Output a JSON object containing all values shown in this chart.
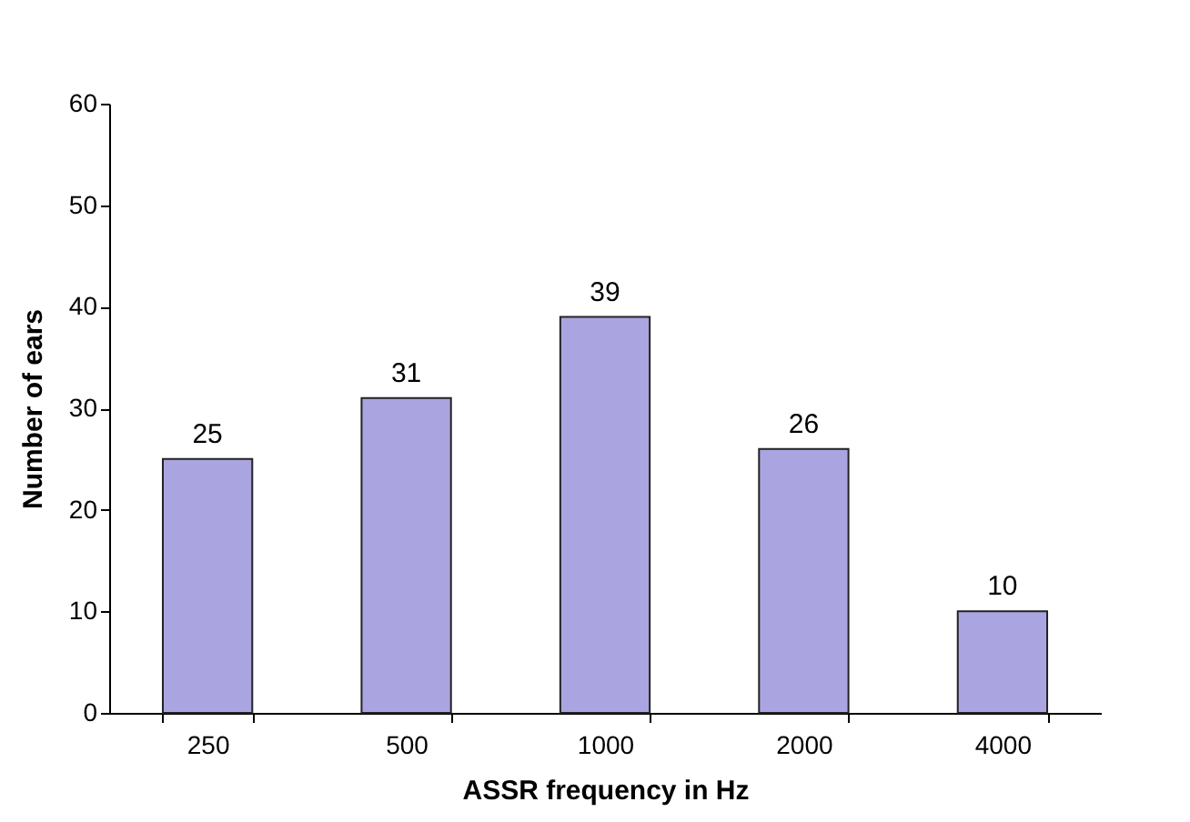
{
  "chart_data": {
    "type": "bar",
    "xlabel": "ASSR frequency in Hz",
    "ylabel": "Number of ears",
    "categories": [
      "250",
      "500",
      "1000",
      "2000",
      "4000"
    ],
    "values": [
      25,
      31,
      39,
      26,
      10
    ],
    "color": "#aaa5e0",
    "ylim": [
      0,
      60
    ],
    "yticks": [
      0,
      10,
      20,
      30,
      40,
      50,
      60
    ],
    "grid": false,
    "data_labels": true
  }
}
